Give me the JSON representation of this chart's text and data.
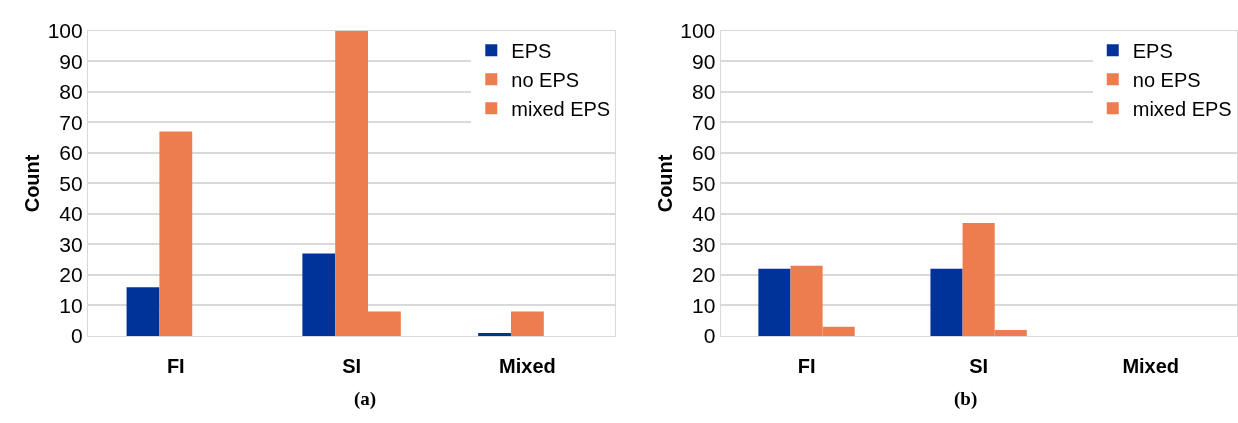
{
  "chart_data": [
    {
      "type": "bar",
      "categories": [
        "FI",
        "SI",
        "Mixed"
      ],
      "ylabel": "Count",
      "ylim": [
        0,
        100
      ],
      "yticks": [
        0,
        10,
        20,
        30,
        40,
        50,
        60,
        70,
        80,
        90,
        100
      ],
      "grid": "y",
      "legend": "top right",
      "annotations": [
        "(a)"
      ],
      "series": [
        {
          "name": "EPS",
          "color": "#003399",
          "values": [
            16,
            27,
            1
          ]
        },
        {
          "name": "no EPS",
          "color": "#ed7d4f",
          "values": [
            67,
            100,
            8
          ]
        },
        {
          "name": "mixed EPS",
          "color": "#ed7d4f",
          "values": [
            0,
            8,
            0
          ]
        }
      ]
    },
    {
      "type": "bar",
      "categories": [
        "FI",
        "SI",
        "Mixed"
      ],
      "ylabel": "Count",
      "ylim": [
        0,
        100
      ],
      "yticks": [
        0,
        10,
        20,
        30,
        40,
        50,
        60,
        70,
        80,
        90,
        100
      ],
      "grid": "y",
      "legend": "top right",
      "annotations": [
        "(b)"
      ],
      "series": [
        {
          "name": "EPS",
          "color": "#003399",
          "values": [
            22,
            22,
            0
          ]
        },
        {
          "name": "no EPS",
          "color": "#ed7d4f",
          "values": [
            23,
            37,
            0
          ]
        },
        {
          "name": "mixed EPS",
          "color": "#ed7d4f",
          "values": [
            3,
            2,
            0
          ]
        }
      ]
    }
  ]
}
